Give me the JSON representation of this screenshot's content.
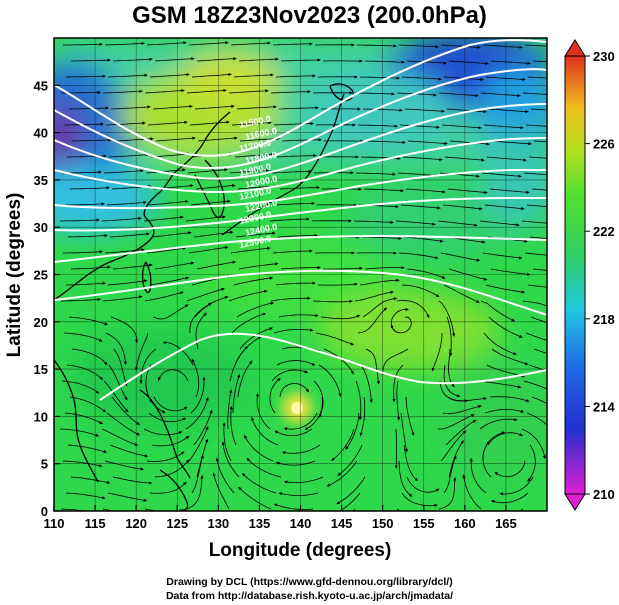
{
  "title": "GSM 18Z23Nov2023 (200.0hPa)",
  "xlabel": "Longitude (degrees)",
  "ylabel": "Latitude (degrees)",
  "credit_line1": "Drawing by DCL (https://www.gfd-dennou.org/library/dcl/)",
  "credit_line2": "Data from http://database.rish.kyoto-u.ac.jp/arch/jmadata/",
  "chart_data": {
    "type": "heatmap",
    "title": "GSM 18Z23Nov2023 (200.0hPa)",
    "xlabel": "Longitude (degrees)",
    "ylabel": "Latitude (degrees)",
    "xlim": [
      110,
      170
    ],
    "ylim": [
      0,
      50
    ],
    "x_ticks": [
      110,
      115,
      120,
      125,
      130,
      135,
      140,
      145,
      150,
      155,
      160,
      165
    ],
    "y_ticks": [
      0,
      5,
      10,
      15,
      20,
      25,
      30,
      35,
      40,
      45
    ],
    "colorbar": {
      "min": 210,
      "max": 230,
      "ticks": [
        210,
        214,
        218,
        222,
        226,
        230
      ],
      "colors": [
        "#e020d0",
        "#2030d0",
        "#20b8e0",
        "#30d040",
        "#a0e020",
        "#f0d020",
        "#e03020"
      ]
    },
    "contour_labels": [
      "11500.0",
      "11600.0",
      "11700.0",
      "11800.0",
      "11900.0",
      "12000.0",
      "12100.0",
      "12200.0",
      "12300.0",
      "12400.0",
      "12500.0"
    ],
    "features": {
      "typhoon_center": [
        139,
        12
      ],
      "cold_pool_northeast": [
        158,
        45
      ],
      "cold_pool_northwest": [
        110,
        40
      ]
    },
    "grid": true
  }
}
